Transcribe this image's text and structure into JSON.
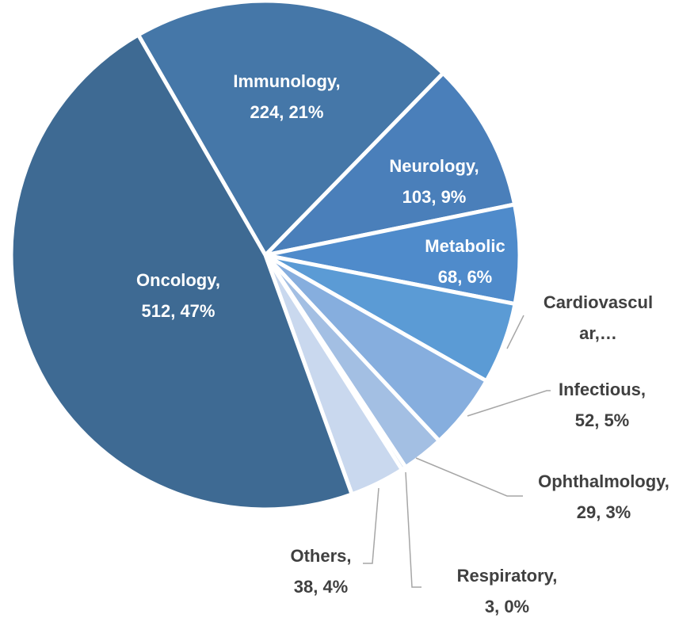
{
  "chart_data": {
    "type": "pie",
    "categories": [
      "Immunology,",
      "Neurology,",
      "Metabolic",
      "Cardiovascular,…",
      "Infectious,",
      "Ophthalmology,",
      "Respiratory,",
      "Others,",
      "Oncology,"
    ],
    "values": [
      224,
      103,
      68,
      56,
      52,
      29,
      3,
      38,
      512
    ],
    "value_labels": [
      "224, 21%",
      "103, 9%",
      "68, 6%",
      null,
      "52, 5%",
      "29, 3%",
      "3, 0%",
      "38, 4%",
      "512, 47%"
    ],
    "colors": [
      "#4577a8",
      "#4a7fba",
      "#4f8bcb",
      "#5b9bd5",
      "#86aede",
      "#a3bfe3",
      "#b8cce8",
      "#c9d8ee",
      "#3e6a93"
    ]
  }
}
